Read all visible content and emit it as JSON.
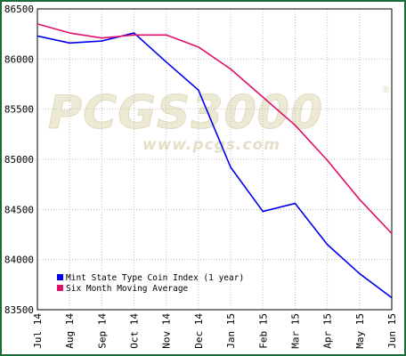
{
  "watermark": {
    "brand": "PCGS3000",
    "registered": "®",
    "url": "www.pcgs.com"
  },
  "chart_data": {
    "type": "line",
    "categories": [
      "Jul 14",
      "Aug 14",
      "Sep 14",
      "Oct 14",
      "Nov 14",
      "Dec 14",
      "Jan 15",
      "Feb 15",
      "Mar 15",
      "Apr 15",
      "May 15",
      "Jun 15"
    ],
    "y_ticks": [
      "86500",
      "86000",
      "85500",
      "85000",
      "84500",
      "84000",
      "83500"
    ],
    "ylim": [
      83500,
      86500
    ],
    "grid": true,
    "legend_position": "bottom-left",
    "series": [
      {
        "name": "Mint State Type Coin Index (1 year)",
        "color": "#0000ee",
        "values": [
          86230,
          86160,
          86180,
          86260,
          85970,
          85690,
          84920,
          84480,
          84560,
          84150,
          83860,
          83620
        ]
      },
      {
        "name": "Six Month Moving Average",
        "color": "#e0106a",
        "values": [
          86350,
          86260,
          86210,
          86240,
          86240,
          86120,
          85900,
          85620,
          85340,
          84990,
          84600,
          84260
        ]
      }
    ]
  }
}
